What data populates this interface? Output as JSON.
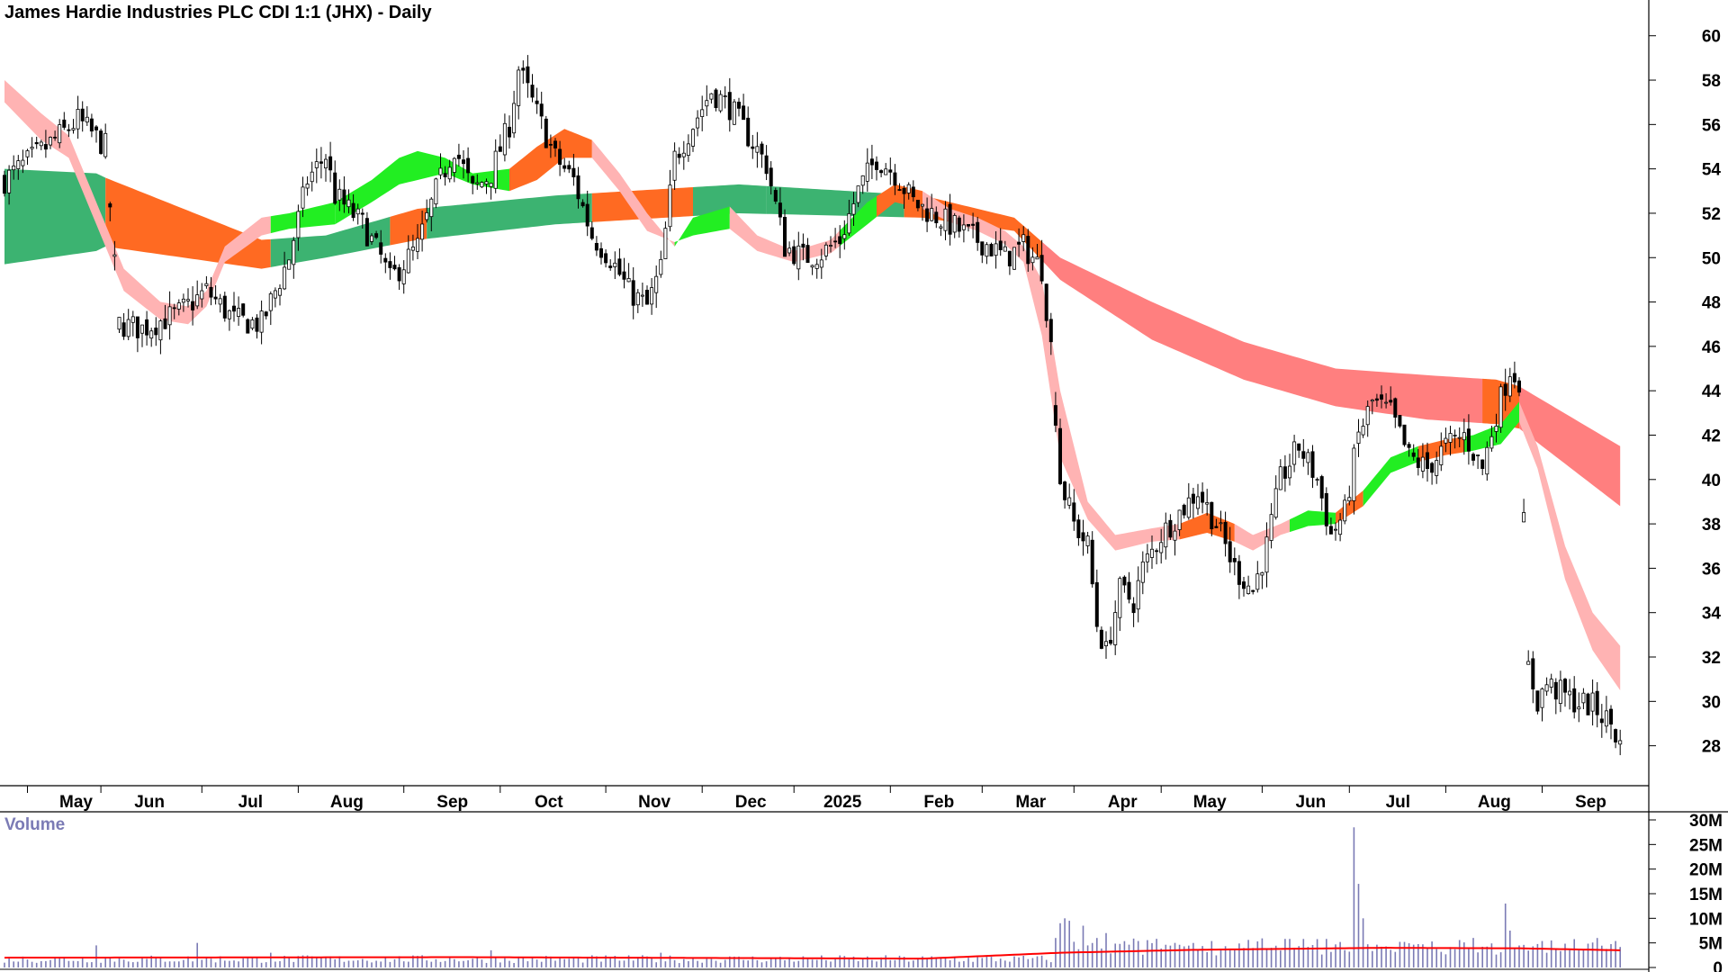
{
  "chart_data": [
    {
      "type": "candlestick",
      "title": "James Hardie Industries PLC CDI 1:1 (JHX) - Daily",
      "y_ticks": [
        28,
        30,
        32,
        34,
        36,
        38,
        40,
        42,
        44,
        46,
        48,
        50,
        52,
        54,
        56,
        58,
        60
      ],
      "ylim": [
        26.2,
        60.8
      ],
      "x_tick_labels": [
        "May",
        "Jun",
        "Jul",
        "Aug",
        "Sep",
        "Oct",
        "Nov",
        "Dec",
        "2025",
        "Feb",
        "Mar",
        "Apr",
        "May",
        "Jun",
        "Jul",
        "Aug",
        "Sep"
      ],
      "grid": false,
      "close_path": [
        [
          0,
          53.5
        ],
        [
          8,
          54.8
        ],
        [
          16,
          56.2
        ],
        [
          22,
          55.0
        ],
        [
          25,
          47.0
        ],
        [
          30,
          46.8
        ],
        [
          38,
          47.5
        ],
        [
          44,
          48.5
        ],
        [
          50,
          47.2
        ],
        [
          56,
          47.0
        ],
        [
          62,
          50.0
        ],
        [
          66,
          53.5
        ],
        [
          70,
          54.6
        ],
        [
          72,
          52.8
        ],
        [
          78,
          51.5
        ],
        [
          82,
          50.0
        ],
        [
          84,
          49.0
        ],
        [
          90,
          50.5
        ],
        [
          94,
          53.0
        ],
        [
          98,
          55.0
        ],
        [
          102,
          53.0
        ],
        [
          106,
          53.8
        ],
        [
          110,
          56.0
        ],
        [
          112,
          58.5
        ],
        [
          116,
          56.5
        ],
        [
          120,
          54.5
        ],
        [
          124,
          53.5
        ],
        [
          128,
          51.0
        ],
        [
          132,
          50.0
        ],
        [
          136,
          48.5
        ],
        [
          140,
          47.8
        ],
        [
          143,
          49.5
        ],
        [
          146,
          54.5
        ],
        [
          150,
          56.0
        ],
        [
          154,
          57.5
        ],
        [
          158,
          56.8
        ],
        [
          162,
          55.5
        ],
        [
          166,
          54.2
        ],
        [
          170,
          50.5
        ],
        [
          174,
          50.0
        ],
        [
          178,
          50.2
        ],
        [
          182,
          50.8
        ],
        [
          186,
          53.0
        ],
        [
          190,
          54.5
        ],
        [
          194,
          53.8
        ],
        [
          198,
          52.5
        ],
        [
          202,
          52.0
        ],
        [
          206,
          51.5
        ],
        [
          210,
          51.0
        ],
        [
          214,
          50.6
        ],
        [
          218,
          50.0
        ],
        [
          222,
          50.5
        ],
        [
          226,
          49.5
        ],
        [
          228,
          46.0
        ],
        [
          230,
          40.0
        ],
        [
          233,
          38.0
        ],
        [
          236,
          37.0
        ],
        [
          238,
          33.5
        ],
        [
          240,
          32.2
        ],
        [
          243,
          35.0
        ],
        [
          246,
          34.5
        ],
        [
          248,
          36.0
        ],
        [
          252,
          37.5
        ],
        [
          256,
          38.5
        ],
        [
          260,
          39.5
        ],
        [
          264,
          38.0
        ],
        [
          268,
          36.0
        ],
        [
          272,
          35.0
        ],
        [
          275,
          37.0
        ],
        [
          278,
          40.0
        ],
        [
          282,
          41.5
        ],
        [
          286,
          40.0
        ],
        [
          289,
          37.5
        ],
        [
          292,
          38.5
        ],
        [
          295,
          42.0
        ],
        [
          298,
          43.5
        ],
        [
          302,
          43.0
        ],
        [
          306,
          41.0
        ],
        [
          310,
          40.5
        ],
        [
          314,
          41.5
        ],
        [
          318,
          42.0
        ],
        [
          322,
          40.5
        ],
        [
          325,
          43.0
        ],
        [
          328,
          45.0
        ],
        [
          330,
          44.5
        ],
        [
          332,
          31.5
        ],
        [
          334,
          30.0
        ],
        [
          336,
          30.8
        ],
        [
          338,
          30.5
        ],
        [
          342,
          30.0
        ],
        [
          346,
          29.8
        ],
        [
          350,
          29.0
        ],
        [
          352,
          28.0
        ]
      ],
      "bands": [
        {
          "name": "short-term ribbon",
          "upper_path": [
            [
              0,
              58.0
            ],
            [
              8,
              56.5
            ],
            [
              14,
              55.5
            ],
            [
              18,
              53.5
            ],
            [
              26,
              49.5
            ],
            [
              34,
              48.0
            ],
            [
              40,
              47.8
            ],
            [
              44,
              48.5
            ],
            [
              48,
              50.5
            ],
            [
              56,
              51.8
            ],
            [
              62,
              52.0
            ],
            [
              72,
              52.5
            ],
            [
              80,
              53.5
            ],
            [
              86,
              54.5
            ],
            [
              90,
              54.8
            ],
            [
              96,
              54.5
            ],
            [
              102,
              53.8
            ],
            [
              110,
              54.0
            ],
            [
              116,
              55.0
            ],
            [
              122,
              55.8
            ],
            [
              128,
              55.3
            ],
            [
              134,
              53.8
            ],
            [
              140,
              52.0
            ],
            [
              146,
              50.5
            ],
            [
              150,
              51.8
            ],
            [
              158,
              52.3
            ],
            [
              164,
              51.0
            ],
            [
              172,
              50.3
            ],
            [
              180,
              50.8
            ],
            [
              188,
              52.5
            ],
            [
              194,
              53.3
            ],
            [
              200,
              53.0
            ],
            [
              206,
              52.2
            ],
            [
              212,
              51.8
            ],
            [
              218,
              51.2
            ],
            [
              222,
              50.5
            ],
            [
              226,
              49.0
            ],
            [
              230,
              44.0
            ],
            [
              236,
              39.0
            ],
            [
              242,
              37.5
            ],
            [
              250,
              37.8
            ],
            [
              256,
              38.0
            ],
            [
              262,
              38.5
            ],
            [
              268,
              38.0
            ],
            [
              272,
              37.5
            ],
            [
              278,
              38.0
            ],
            [
              284,
              38.6
            ],
            [
              290,
              38.5
            ],
            [
              296,
              39.5
            ],
            [
              302,
              41.0
            ],
            [
              308,
              41.5
            ],
            [
              314,
              41.8
            ],
            [
              320,
              42.0
            ],
            [
              326,
              42.5
            ],
            [
              330,
              43.5
            ],
            [
              334,
              41.5
            ],
            [
              340,
              37.0
            ],
            [
              346,
              34.0
            ],
            [
              352,
              32.5
            ]
          ]
        },
        {
          "name": "short-term ribbon",
          "lower_path": [
            [
              0,
              57.0
            ],
            [
              8,
              55.3
            ],
            [
              14,
              54.5
            ],
            [
              18,
              52.5
            ],
            [
              26,
              48.5
            ],
            [
              34,
              47.2
            ],
            [
              40,
              47.0
            ],
            [
              44,
              47.8
            ],
            [
              48,
              49.8
            ],
            [
              56,
              51.0
            ],
            [
              62,
              51.3
            ],
            [
              72,
              51.5
            ],
            [
              80,
              52.5
            ],
            [
              86,
              53.3
            ],
            [
              90,
              53.5
            ],
            [
              96,
              53.8
            ],
            [
              102,
              53.3
            ],
            [
              110,
              53.0
            ],
            [
              116,
              53.5
            ],
            [
              122,
              54.5
            ],
            [
              128,
              54.5
            ],
            [
              134,
              53.0
            ],
            [
              140,
              51.2
            ],
            [
              146,
              50.7
            ],
            [
              150,
              51.0
            ],
            [
              158,
              51.3
            ],
            [
              164,
              50.3
            ],
            [
              172,
              49.8
            ],
            [
              180,
              50.2
            ],
            [
              188,
              51.5
            ],
            [
              194,
              52.5
            ],
            [
              200,
              52.2
            ],
            [
              206,
              51.6
            ],
            [
              212,
              51.2
            ],
            [
              218,
              50.6
            ],
            [
              222,
              49.8
            ],
            [
              226,
              46.5
            ],
            [
              230,
              41.0
            ],
            [
              236,
              38.2
            ],
            [
              242,
              36.8
            ],
            [
              250,
              37.2
            ],
            [
              256,
              37.3
            ],
            [
              262,
              37.6
            ],
            [
              268,
              37.2
            ],
            [
              272,
              36.8
            ],
            [
              278,
              37.5
            ],
            [
              284,
              37.9
            ],
            [
              290,
              38.0
            ],
            [
              296,
              38.8
            ],
            [
              302,
              40.3
            ],
            [
              308,
              40.8
            ],
            [
              314,
              41.1
            ],
            [
              320,
              41.3
            ],
            [
              326,
              41.6
            ],
            [
              330,
              42.6
            ],
            [
              334,
              40.5
            ],
            [
              340,
              35.5
            ],
            [
              346,
              32.3
            ],
            [
              352,
              30.5
            ]
          ]
        },
        {
          "name": "long-term ribbon",
          "upper_path": [
            [
              0,
              54.0
            ],
            [
              20,
              53.8
            ],
            [
              22,
              53.6
            ],
            [
              56,
              50.8
            ],
            [
              70,
              51.0
            ],
            [
              90,
              52.2
            ],
            [
              120,
              52.8
            ],
            [
              160,
              53.3
            ],
            [
              200,
              52.8
            ],
            [
              220,
              51.8
            ],
            [
              230,
              50.0
            ],
            [
              250,
              48.0
            ],
            [
              270,
              46.2
            ],
            [
              290,
              45.0
            ],
            [
              310,
              44.7
            ],
            [
              325,
              44.5
            ],
            [
              330,
              44.2
            ],
            [
              352,
              41.5
            ]
          ]
        },
        {
          "name": "long-term ribbon",
          "lower_path": [
            [
              0,
              49.7
            ],
            [
              20,
              50.3
            ],
            [
              22,
              50.5
            ],
            [
              56,
              49.5
            ],
            [
              70,
              50.0
            ],
            [
              90,
              50.8
            ],
            [
              120,
              51.5
            ],
            [
              160,
              52.0
            ],
            [
              200,
              51.8
            ],
            [
              220,
              51.2
            ],
            [
              230,
              49.0
            ],
            [
              250,
              46.3
            ],
            [
              270,
              44.5
            ],
            [
              290,
              43.3
            ],
            [
              310,
              42.7
            ],
            [
              325,
              42.5
            ],
            [
              330,
              42.3
            ],
            [
              352,
              38.8
            ]
          ]
        }
      ],
      "colors": {
        "bull_band": "#3cb371",
        "bear_band": "#ff7f7f",
        "transition_band": "#ff6a22",
        "short_up": "#22ee22",
        "short_down": "#ffb3b3"
      }
    },
    {
      "type": "bar",
      "title": "Volume",
      "y_ticks": [
        "0",
        "5M",
        "10M",
        "15M",
        "20M",
        "25M",
        "30M"
      ],
      "ylim": [
        0,
        30000000
      ],
      "volume_spikes_millions": [
        [
          20,
          4.5
        ],
        [
          42,
          5.0
        ],
        [
          58,
          3.0
        ],
        [
          106,
          3.5
        ],
        [
          143,
          3.0
        ],
        [
          229,
          6.0
        ],
        [
          230,
          9.0
        ],
        [
          231,
          10.0
        ],
        [
          232,
          9.5
        ],
        [
          235,
          8.5
        ],
        [
          238,
          6.0
        ],
        [
          240,
          7.0
        ],
        [
          294,
          28.5
        ],
        [
          295,
          17.0
        ],
        [
          296,
          10.0
        ],
        [
          327,
          13.0
        ],
        [
          328,
          7.5
        ],
        [
          344,
          3.5
        ]
      ],
      "baseline_volume_millions": 1.8,
      "average_line_millions": [
        [
          0,
          2.0
        ],
        [
          100,
          2.1
        ],
        [
          200,
          1.8
        ],
        [
          230,
          3.0
        ],
        [
          260,
          3.6
        ],
        [
          300,
          4.0
        ],
        [
          330,
          3.9
        ],
        [
          352,
          3.5
        ]
      ],
      "colors": {
        "bars": "#7b7bb5",
        "average": "#ff0000"
      }
    }
  ]
}
